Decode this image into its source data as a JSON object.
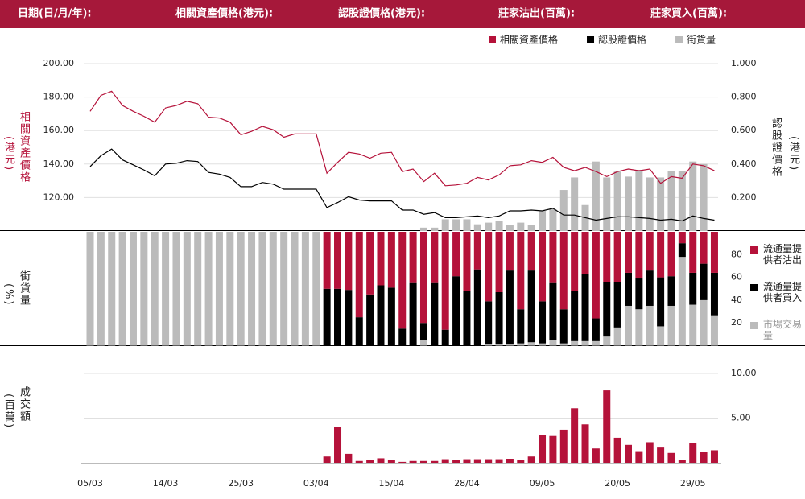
{
  "header": [
    "日期(日/月/年):",
    "相關資產價格(港元):",
    "認股證價格(港元):",
    "莊家沽出(百萬):",
    "莊家買入(百萬):"
  ],
  "chart_data": [
    {
      "type": "line",
      "ylabel": "相關資產價格",
      "ylabel_unit": "(港元)",
      "y2label": "認股證價格",
      "y2label_unit": "(港元)",
      "ylim": [
        100,
        200
      ],
      "yticks": [
        {
          "value": 120,
          "label": "120.00"
        },
        {
          "value": 140,
          "label": "140.00"
        },
        {
          "value": 160,
          "label": "160.00"
        },
        {
          "value": 180,
          "label": "180.00"
        },
        {
          "value": 200,
          "label": "200.00"
        }
      ],
      "y2lim": [
        0,
        1
      ],
      "y2ticks": [
        {
          "value": 0.2,
          "label": "0.200"
        },
        {
          "value": 0.4,
          "label": "0.400"
        },
        {
          "value": 0.6,
          "label": "0.600"
        },
        {
          "value": 0.8,
          "label": "0.800"
        },
        {
          "value": 1,
          "label": "1.000"
        }
      ],
      "grid": true,
      "legend": "top",
      "series": [
        {
          "name": "相關資產價格",
          "color": "#b5123a",
          "values": [
            171.5,
            181,
            183.5,
            175,
            171.5,
            168.5,
            165,
            173.5,
            175,
            177.5,
            176,
            168,
            167.5,
            165,
            157.5,
            159.5,
            162.5,
            160.5,
            156,
            158,
            158,
            158,
            134.5,
            141,
            147,
            146,
            143.5,
            146.5,
            147,
            135.5,
            137,
            129.5,
            134.5,
            127,
            127.5,
            128.5,
            132,
            130.5,
            133.5,
            139,
            139.5,
            142,
            141,
            144,
            138,
            136,
            138,
            135.5,
            132.5,
            135.5,
            137,
            136,
            137,
            128.5,
            132.5,
            131.5,
            140,
            139,
            136
          ]
        },
        {
          "name": "認股證價格",
          "color": "#000000",
          "axis": "y2",
          "values": [
            0.385,
            0.45,
            0.49,
            0.425,
            0.395,
            0.365,
            0.33,
            0.4,
            0.405,
            0.42,
            0.415,
            0.35,
            0.34,
            0.32,
            0.265,
            0.265,
            0.29,
            0.28,
            0.25,
            0.25,
            0.25,
            0.25,
            0.14,
            0.17,
            0.205,
            0.185,
            0.18,
            0.18,
            0.18,
            0.125,
            0.125,
            0.1,
            0.11,
            0.08,
            0.08,
            0.085,
            0.09,
            0.08,
            0.09,
            0.12,
            0.12,
            0.125,
            0.12,
            0.135,
            0.095,
            0.095,
            0.08,
            0.065,
            0.075,
            0.085,
            0.085,
            0.08,
            0.075,
            0.065,
            0.07,
            0.06,
            0.09,
            0.075,
            0.065
          ]
        },
        {
          "name": "街貨量",
          "color": "#bbbbbb",
          "type": "bar",
          "axis": "y2",
          "values": [
            null,
            null,
            null,
            null,
            null,
            null,
            null,
            null,
            null,
            null,
            null,
            null,
            null,
            null,
            null,
            null,
            null,
            null,
            null,
            null,
            null,
            null,
            null,
            null,
            null,
            null,
            null,
            null,
            null,
            null,
            null,
            0.02,
            0.02,
            0.07,
            0.07,
            0.07,
            0.04,
            0.05,
            0.06,
            0.035,
            0.05,
            0.035,
            0.12,
            0.13,
            0.245,
            0.32,
            0.155,
            0.415,
            0.32,
            0.355,
            0.325,
            0.365,
            0.32,
            0.32,
            0.36,
            0.36,
            0.415,
            0.4,
            null
          ]
        }
      ]
    },
    {
      "type": "stacked_bar",
      "ylabel": "街貨量",
      "ylabel_unit": "(%)",
      "ylim": [
        0,
        100
      ],
      "yticks": [
        20,
        40,
        60,
        80
      ],
      "grid": false,
      "legend": "right",
      "series": [
        {
          "name": "流通量提供者沽出",
          "color": "#b5123a",
          "values": [
            0,
            0,
            0,
            0,
            0,
            0,
            0,
            0,
            0,
            0,
            0,
            0,
            0,
            0,
            0,
            0,
            0,
            0,
            0,
            0,
            0,
            0,
            50,
            50,
            51,
            75,
            55,
            47,
            49,
            85,
            45,
            80,
            45,
            86,
            39,
            52,
            33,
            61,
            53,
            34,
            68,
            34,
            61,
            45,
            68,
            52,
            37,
            76,
            44,
            44,
            36,
            41,
            34,
            40,
            39,
            10,
            36,
            28,
            36
          ]
        },
        {
          "name": "流通量提供者買入",
          "color": "#000000",
          "values": [
            0,
            0,
            0,
            0,
            0,
            0,
            0,
            0,
            0,
            0,
            0,
            0,
            0,
            0,
            0,
            0,
            0,
            0,
            0,
            0,
            0,
            0,
            50,
            50,
            49,
            25,
            45,
            53,
            51,
            15,
            55,
            15,
            55,
            14,
            61,
            48,
            67,
            38,
            46,
            65,
            30,
            63,
            37,
            50,
            30,
            44,
            59,
            20,
            48,
            40,
            29,
            27,
            31,
            43,
            26,
            12,
            28,
            32,
            38
          ]
        },
        {
          "name": "市場交易量",
          "color": "#bbbbbb",
          "values": [
            100,
            100,
            100,
            100,
            100,
            100,
            100,
            100,
            100,
            100,
            100,
            100,
            100,
            100,
            100,
            100,
            100,
            100,
            100,
            100,
            100,
            100,
            0,
            0,
            0,
            0,
            0,
            0,
            0,
            0,
            0,
            5,
            0,
            0,
            0,
            0,
            0,
            1,
            1,
            1,
            2,
            3,
            2,
            5,
            2,
            4,
            4,
            4,
            8,
            16,
            35,
            32,
            35,
            17,
            35,
            78,
            36,
            40,
            26
          ]
        }
      ]
    },
    {
      "type": "bar",
      "ylabel": "成交額",
      "ylabel_unit": "(百萬)",
      "color": "#b5123a",
      "ylim": [
        0,
        13
      ],
      "yticks": [
        {
          "value": 5,
          "label": "5.00"
        },
        {
          "value": 10,
          "label": "10.00"
        }
      ],
      "grid": true,
      "categories": [
        "05/03",
        null,
        null,
        null,
        null,
        null,
        null,
        "14/03",
        null,
        null,
        null,
        null,
        null,
        null,
        "25/03",
        null,
        null,
        null,
        null,
        null,
        null,
        "03/04",
        null,
        null,
        null,
        null,
        null,
        null,
        "15/04",
        null,
        null,
        null,
        null,
        null,
        null,
        "28/04",
        null,
        null,
        null,
        null,
        null,
        null,
        "09/05",
        null,
        null,
        null,
        null,
        null,
        null,
        "20/05",
        null,
        null,
        null,
        null,
        null,
        null,
        "29/05",
        null,
        null
      ],
      "values": [
        null,
        null,
        null,
        null,
        null,
        null,
        null,
        null,
        null,
        null,
        null,
        null,
        null,
        null,
        null,
        null,
        null,
        null,
        null,
        null,
        null,
        null,
        0.7,
        4.0,
        1.0,
        0.2,
        0.3,
        0.5,
        0.3,
        0.1,
        0.2,
        0.2,
        0.2,
        0.4,
        0.3,
        0.4,
        0.4,
        0.4,
        0.4,
        0.45,
        0.3,
        0.7,
        3.1,
        3.0,
        3.7,
        6.1,
        4.3,
        1.6,
        8.1,
        2.8,
        2.0,
        1.3,
        2.3,
        1.7,
        1.1,
        0.3,
        2.2,
        1.2,
        1.4
      ]
    }
  ]
}
